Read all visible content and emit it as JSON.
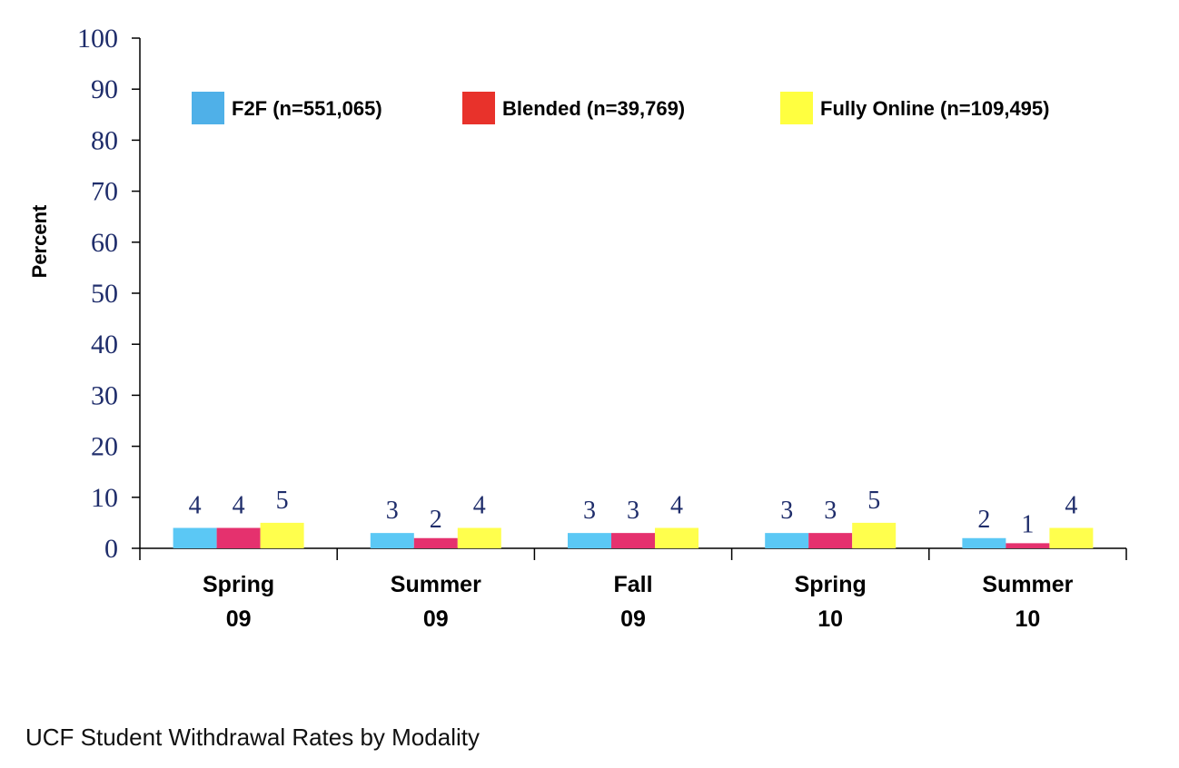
{
  "caption": "UCF Student Withdrawal Rates by Modality",
  "chart_data": {
    "type": "bar",
    "title": "",
    "xlabel": "",
    "ylabel": "Percent",
    "ylim": [
      0,
      100
    ],
    "yticks": [
      0,
      10,
      20,
      30,
      40,
      50,
      60,
      70,
      80,
      90,
      100
    ],
    "categories": [
      [
        "Spring",
        "09"
      ],
      [
        "Summer",
        "09"
      ],
      [
        "Fall",
        "09"
      ],
      [
        "Spring",
        "10"
      ],
      [
        "Summer",
        "10"
      ]
    ],
    "series": [
      {
        "name": "F2F (n=551,065)",
        "color": "#5bc8f5",
        "values": [
          4,
          3,
          3,
          3,
          2
        ]
      },
      {
        "name": "Blended (n=39,769)",
        "color": "#e5316e",
        "values": [
          4,
          2,
          3,
          3,
          1
        ]
      },
      {
        "name": "Fully Online (n=109,495)",
        "color": "#ffff4d",
        "values": [
          5,
          4,
          4,
          5,
          4
        ]
      }
    ],
    "legend": {
      "position": "top",
      "swatch_colors": [
        "#4fb0e8",
        "#e8322b",
        "#ffff40"
      ]
    },
    "grid": false,
    "data_labels": true
  }
}
